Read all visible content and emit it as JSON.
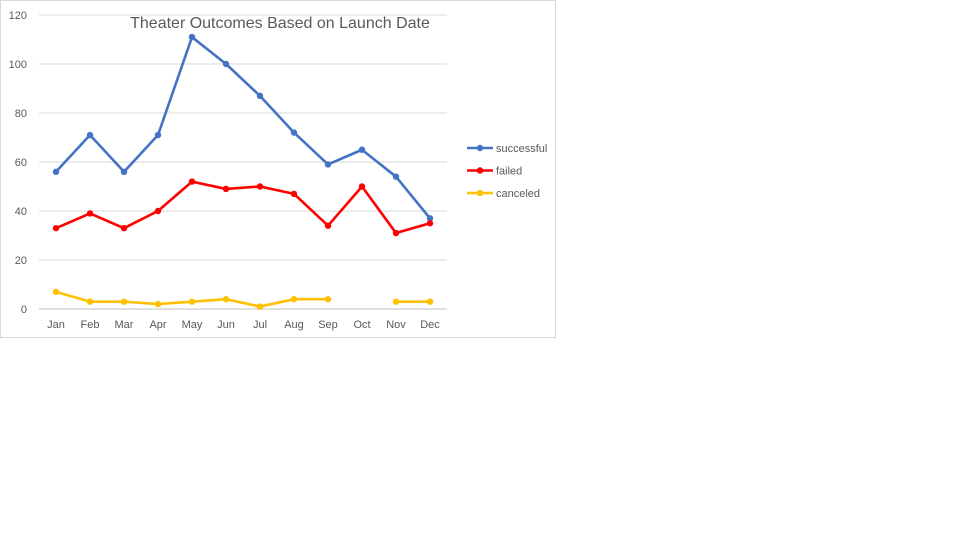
{
  "chart_data": {
    "type": "line",
    "title": "Theater Outcomes Based on Launch Date",
    "categories": [
      "Jan",
      "Feb",
      "Mar",
      "Apr",
      "May",
      "Jun",
      "Jul",
      "Aug",
      "Sep",
      "Oct",
      "Nov",
      "Dec"
    ],
    "ylim": [
      0,
      120
    ],
    "yticks": [
      0,
      20,
      40,
      60,
      80,
      100,
      120
    ],
    "grid": true,
    "legend": "right",
    "series": [
      {
        "name": "successful",
        "color": "#4472c4",
        "values": [
          56,
          71,
          56,
          71,
          111,
          100,
          87,
          72,
          59,
          65,
          54,
          37
        ]
      },
      {
        "name": "failed",
        "color": "#ff0000",
        "values": [
          33,
          39,
          33,
          40,
          52,
          49,
          50,
          47,
          34,
          50,
          31,
          35
        ]
      },
      {
        "name": "canceled",
        "color": "#ffc000",
        "values": [
          7,
          3,
          3,
          2,
          3,
          4,
          1,
          4,
          4,
          null,
          3,
          3
        ]
      }
    ]
  }
}
